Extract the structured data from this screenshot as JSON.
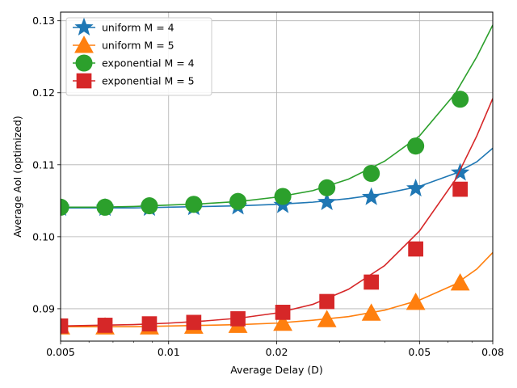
{
  "chart_data": {
    "type": "line",
    "title": "",
    "xlabel": "Average Delay (D)",
    "ylabel": "Average AoI (optimized)",
    "x_scale": "log",
    "xlim": [
      0.005,
      0.08
    ],
    "ylim": [
      0.0855,
      0.1312
    ],
    "grid": true,
    "legend_position": "top-left",
    "x_ticks": [
      {
        "value": 0.005,
        "label": "0.005"
      },
      {
        "value": 0.01,
        "label": "0.01"
      },
      {
        "value": 0.02,
        "label": "0.02"
      },
      {
        "value": 0.05,
        "label": "0.05"
      },
      {
        "value": 0.08,
        "label": "0.08"
      }
    ],
    "y_ticks": [
      {
        "value": 0.09,
        "label": "0.09"
      },
      {
        "value": 0.1,
        "label": "0.10"
      },
      {
        "value": 0.11,
        "label": "0.11"
      },
      {
        "value": 0.12,
        "label": "0.12"
      },
      {
        "value": 0.13,
        "label": "0.13"
      }
    ],
    "series": [
      {
        "name": "uniform M = 4",
        "color": "#1f77b4",
        "marker": "star",
        "curve_x": [
          0.005,
          0.0063,
          0.008,
          0.01,
          0.0126,
          0.0158,
          0.02,
          0.0252,
          0.0317,
          0.04,
          0.05,
          0.0629,
          0.0722,
          0.08
        ],
        "curve_y": [
          0.104,
          0.104,
          0.104,
          0.1041,
          0.1042,
          0.1043,
          0.1045,
          0.1048,
          0.1053,
          0.106,
          0.107,
          0.1088,
          0.1104,
          0.1123
        ],
        "markers_x": [
          0.005,
          0.00665,
          0.00884,
          0.01175,
          0.0156,
          0.0208,
          0.0276,
          0.0367,
          0.0488,
          0.0649
        ],
        "markers_y": [
          0.104,
          0.104,
          0.104,
          0.1041,
          0.1042,
          0.1044,
          0.1048,
          0.1055,
          0.1067,
          0.1089
        ]
      },
      {
        "name": "uniform M = 5",
        "color": "#ff7f0e",
        "marker": "triangle",
        "curve_x": [
          0.005,
          0.0063,
          0.008,
          0.01,
          0.0126,
          0.0158,
          0.02,
          0.0252,
          0.0317,
          0.04,
          0.05,
          0.0629,
          0.0722,
          0.08
        ],
        "curve_y": [
          0.0875,
          0.0875,
          0.0875,
          0.0876,
          0.0877,
          0.0878,
          0.088,
          0.0884,
          0.0889,
          0.0898,
          0.0912,
          0.0934,
          0.0955,
          0.0978
        ],
        "markers_x": [
          0.005,
          0.00665,
          0.00884,
          0.01175,
          0.0156,
          0.0208,
          0.0276,
          0.0367,
          0.0488,
          0.0649
        ],
        "markers_y": [
          0.0875,
          0.0875,
          0.0875,
          0.0876,
          0.0877,
          0.088,
          0.0885,
          0.0894,
          0.0909,
          0.0936
        ]
      },
      {
        "name": "exponential M = 4",
        "color": "#2ca02c",
        "marker": "circle",
        "curve_x": [
          0.005,
          0.0063,
          0.008,
          0.01,
          0.0126,
          0.0158,
          0.02,
          0.0252,
          0.0317,
          0.04,
          0.05,
          0.0629,
          0.0722,
          0.08
        ],
        "curve_y": [
          0.1041,
          0.1041,
          0.1042,
          0.1044,
          0.1046,
          0.1049,
          0.1055,
          0.1064,
          0.108,
          0.1105,
          0.114,
          0.1199,
          0.125,
          0.1294
        ],
        "markers_x": [
          0.005,
          0.00665,
          0.00884,
          0.01175,
          0.0156,
          0.0208,
          0.0276,
          0.0367,
          0.0488,
          0.0649
        ],
        "markers_y": [
          0.1041,
          0.1041,
          0.1043,
          0.1045,
          0.1049,
          0.1056,
          0.1068,
          0.1088,
          0.1126,
          0.1191
        ]
      },
      {
        "name": "exponential M = 5",
        "color": "#d62728",
        "marker": "square",
        "curve_x": [
          0.005,
          0.0063,
          0.008,
          0.01,
          0.0126,
          0.0158,
          0.02,
          0.0252,
          0.0317,
          0.04,
          0.05,
          0.0629,
          0.0722,
          0.08
        ],
        "curve_y": [
          0.0876,
          0.0877,
          0.0878,
          0.088,
          0.0883,
          0.0887,
          0.0894,
          0.0906,
          0.0927,
          0.096,
          0.1008,
          0.1079,
          0.114,
          0.1192
        ],
        "markers_x": [
          0.005,
          0.00665,
          0.00884,
          0.01175,
          0.0156,
          0.0208,
          0.0276,
          0.0367,
          0.0488,
          0.0649
        ],
        "markers_y": [
          0.0876,
          0.0877,
          0.0879,
          0.0881,
          0.0886,
          0.0895,
          0.091,
          0.0937,
          0.0983,
          0.1066
        ]
      }
    ]
  }
}
